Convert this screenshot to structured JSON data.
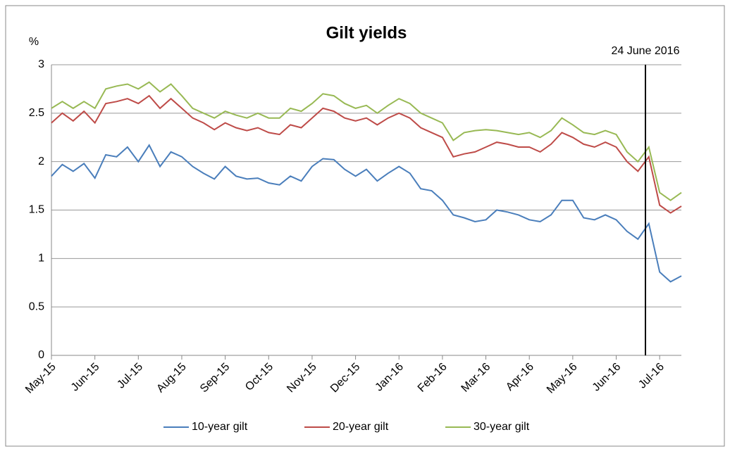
{
  "chart_data": {
    "type": "line",
    "title": "Gilt yields",
    "y_label": "%",
    "annotation": "24 June 2016",
    "categories": [
      "May-15",
      null,
      null,
      null,
      "Jun-15",
      null,
      null,
      null,
      "Jul-15",
      null,
      null,
      null,
      "Aug-15",
      null,
      null,
      null,
      "Sep-15",
      null,
      null,
      null,
      "Oct-15",
      null,
      null,
      null,
      "Nov-15",
      null,
      null,
      null,
      "Dec-15",
      null,
      null,
      null,
      "Jan-16",
      null,
      null,
      null,
      "Feb-16",
      null,
      null,
      null,
      "Mar-16",
      null,
      null,
      null,
      "Apr-16",
      null,
      null,
      null,
      "May-16",
      null,
      null,
      null,
      "Jun-16",
      null,
      null,
      null,
      "Jul-16",
      null,
      null
    ],
    "series": [
      {
        "name": "10-year gilt",
        "color": "#4a7ebb",
        "values": [
          1.85,
          1.97,
          1.9,
          1.98,
          1.83,
          2.07,
          2.05,
          2.15,
          2.0,
          2.17,
          1.95,
          2.1,
          2.05,
          1.95,
          1.88,
          1.82,
          1.95,
          1.85,
          1.82,
          1.83,
          1.78,
          1.76,
          1.85,
          1.8,
          1.95,
          2.03,
          2.02,
          1.92,
          1.85,
          1.92,
          1.8,
          1.88,
          1.95,
          1.88,
          1.72,
          1.7,
          1.6,
          1.45,
          1.42,
          1.38,
          1.4,
          1.5,
          1.48,
          1.45,
          1.4,
          1.38,
          1.45,
          1.6,
          1.6,
          1.42,
          1.4,
          1.45,
          1.4,
          1.28,
          1.2,
          1.36,
          0.86,
          0.76,
          0.82
        ]
      },
      {
        "name": "20-year gilt",
        "color": "#be4b48",
        "values": [
          2.4,
          2.5,
          2.42,
          2.52,
          2.4,
          2.6,
          2.62,
          2.65,
          2.6,
          2.68,
          2.55,
          2.65,
          2.55,
          2.45,
          2.4,
          2.33,
          2.4,
          2.35,
          2.32,
          2.35,
          2.3,
          2.28,
          2.38,
          2.35,
          2.45,
          2.55,
          2.52,
          2.45,
          2.42,
          2.45,
          2.38,
          2.45,
          2.5,
          2.45,
          2.35,
          2.3,
          2.25,
          2.05,
          2.08,
          2.1,
          2.15,
          2.2,
          2.18,
          2.15,
          2.15,
          2.1,
          2.18,
          2.3,
          2.25,
          2.18,
          2.15,
          2.2,
          2.15,
          2.0,
          1.9,
          2.05,
          1.55,
          1.47,
          1.54
        ]
      },
      {
        "name": "30-year gilt",
        "color": "#98b954",
        "values": [
          2.55,
          2.62,
          2.55,
          2.62,
          2.55,
          2.75,
          2.78,
          2.8,
          2.75,
          2.82,
          2.72,
          2.8,
          2.68,
          2.55,
          2.5,
          2.45,
          2.52,
          2.48,
          2.45,
          2.5,
          2.45,
          2.45,
          2.55,
          2.52,
          2.6,
          2.7,
          2.68,
          2.6,
          2.55,
          2.58,
          2.5,
          2.58,
          2.65,
          2.6,
          2.5,
          2.45,
          2.4,
          2.22,
          2.3,
          2.32,
          2.33,
          2.32,
          2.3,
          2.28,
          2.3,
          2.25,
          2.32,
          2.45,
          2.38,
          2.3,
          2.28,
          2.32,
          2.28,
          2.1,
          2.0,
          2.15,
          1.68,
          1.6,
          1.68
        ]
      }
    ],
    "ylim": [
      0,
      3
    ],
    "yticks": [
      0,
      0.5,
      1,
      1.5,
      2,
      2.5,
      3
    ],
    "grid": true
  }
}
